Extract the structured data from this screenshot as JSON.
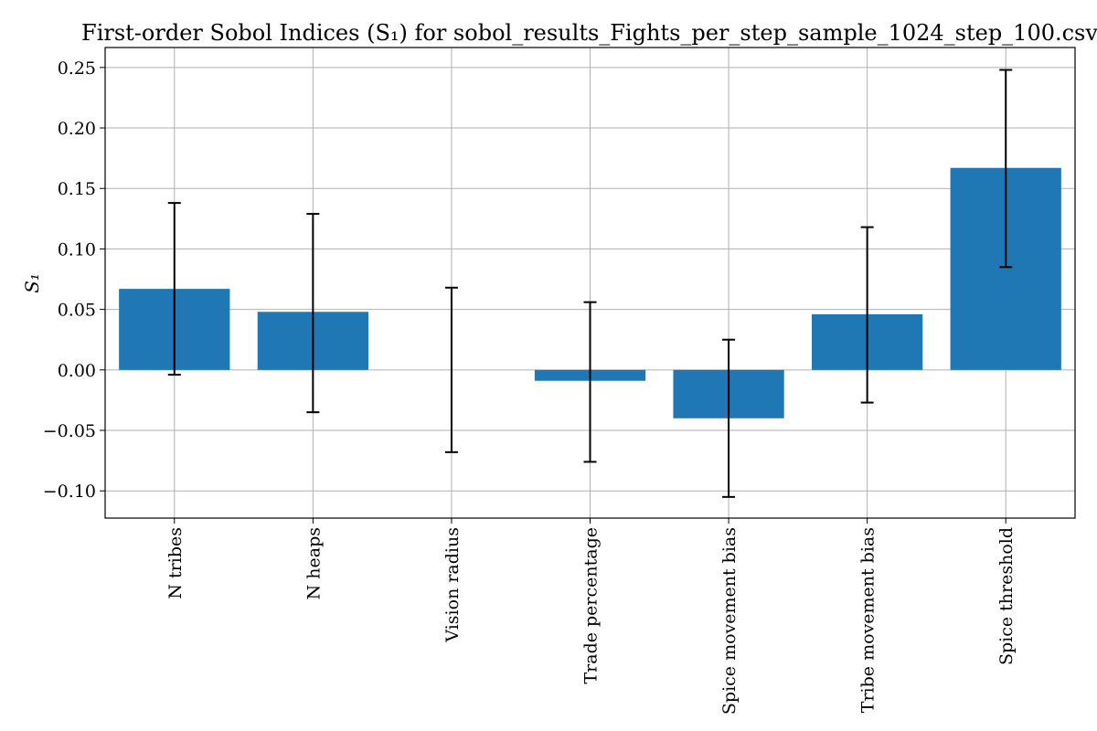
{
  "chart_data": {
    "type": "bar",
    "title": "First-order Sobol Indices (S₁) for sobol_results_Fights_per_step_sample_1024_step_100.csv",
    "xlabel": "",
    "ylabel": "S₁",
    "categories": [
      "N tribes",
      "N heaps",
      "Vision radius",
      "Trade percentage",
      "Spice movement bias",
      "Tribe movement bias",
      "Spice threshold"
    ],
    "values": [
      0.067,
      0.048,
      0.0,
      -0.009,
      -0.04,
      0.046,
      0.167
    ],
    "error_low": [
      -0.004,
      -0.035,
      -0.068,
      -0.076,
      -0.105,
      -0.027,
      0.085
    ],
    "error_high": [
      0.138,
      0.129,
      0.068,
      0.056,
      0.025,
      0.118,
      0.248
    ],
    "ylim": [
      -0.1225,
      0.2665
    ],
    "yticks": [
      -0.1,
      -0.05,
      0.0,
      0.05,
      0.1,
      0.15,
      0.2,
      0.25
    ],
    "ytick_labels": [
      "−0.10",
      "−0.05",
      "0.00",
      "0.05",
      "0.10",
      "0.15",
      "0.20",
      "0.25"
    ],
    "grid": true,
    "bar_color": "#1f77b4",
    "error_bar_color": "#000000"
  }
}
